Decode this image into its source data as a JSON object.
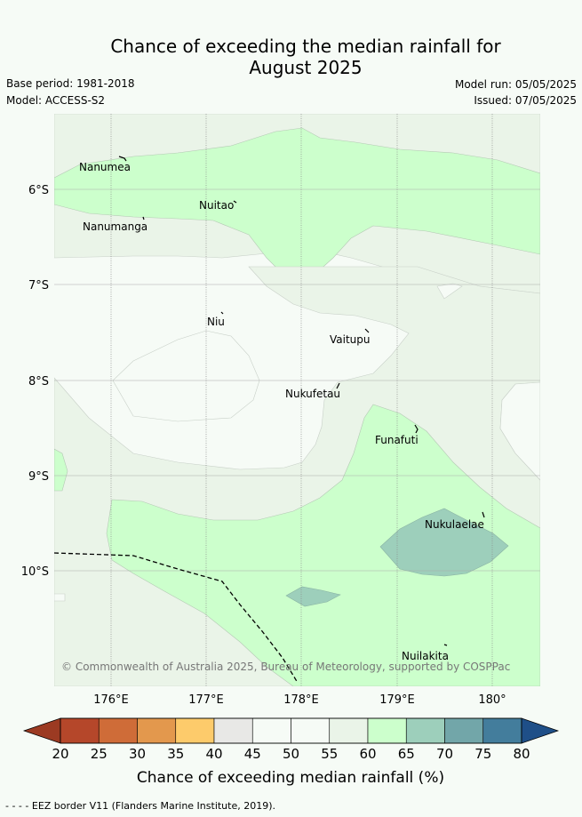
{
  "header": {
    "title_line1": "Chance of exceeding the median rainfall for",
    "title_line2": "August 2025",
    "base_period": "Base period: 1981-2018",
    "model": "Model: ACCESS-S2",
    "model_run": "Model run: 05/05/2025",
    "issued": "Issued: 07/05/2025"
  },
  "map": {
    "lat_ticks": [
      "6°S",
      "7°S",
      "8°S",
      "9°S",
      "10°S"
    ],
    "lon_ticks": [
      "176°E",
      "177°E",
      "178°E",
      "179°E",
      "180°"
    ],
    "places": [
      "Nanumea",
      "Nuitao",
      "Nanumanga",
      "Niu",
      "Vaitupu",
      "Nukufetau",
      "Funafuti",
      "Nukulaelae",
      "Nuilakita"
    ],
    "copyright": "© Commonwealth of Australia 2025, Bureau of Meteorology, supported by COSPPac"
  },
  "colorbar": {
    "label": "Chance of exceeding median rainfall (%)",
    "ticks": [
      "20",
      "25",
      "30",
      "35",
      "40",
      "45",
      "50",
      "55",
      "60",
      "65",
      "70",
      "75",
      "80"
    ],
    "colors": [
      "#b5472a",
      "#cf6c38",
      "#e3984d",
      "#fdcb6b",
      "#e8e8e6",
      "#f6fbf6",
      "#f6fbf6",
      "#eaf4e8",
      "#ccffcc",
      "#9dcfbb",
      "#72a6a9",
      "#437d9c"
    ],
    "under_color": "#9c3a22",
    "over_color": "#1f4f88"
  },
  "footer": {
    "eez_note": "- - - - EEZ border V11 (Flanders Marine Institute, 2019)."
  }
}
